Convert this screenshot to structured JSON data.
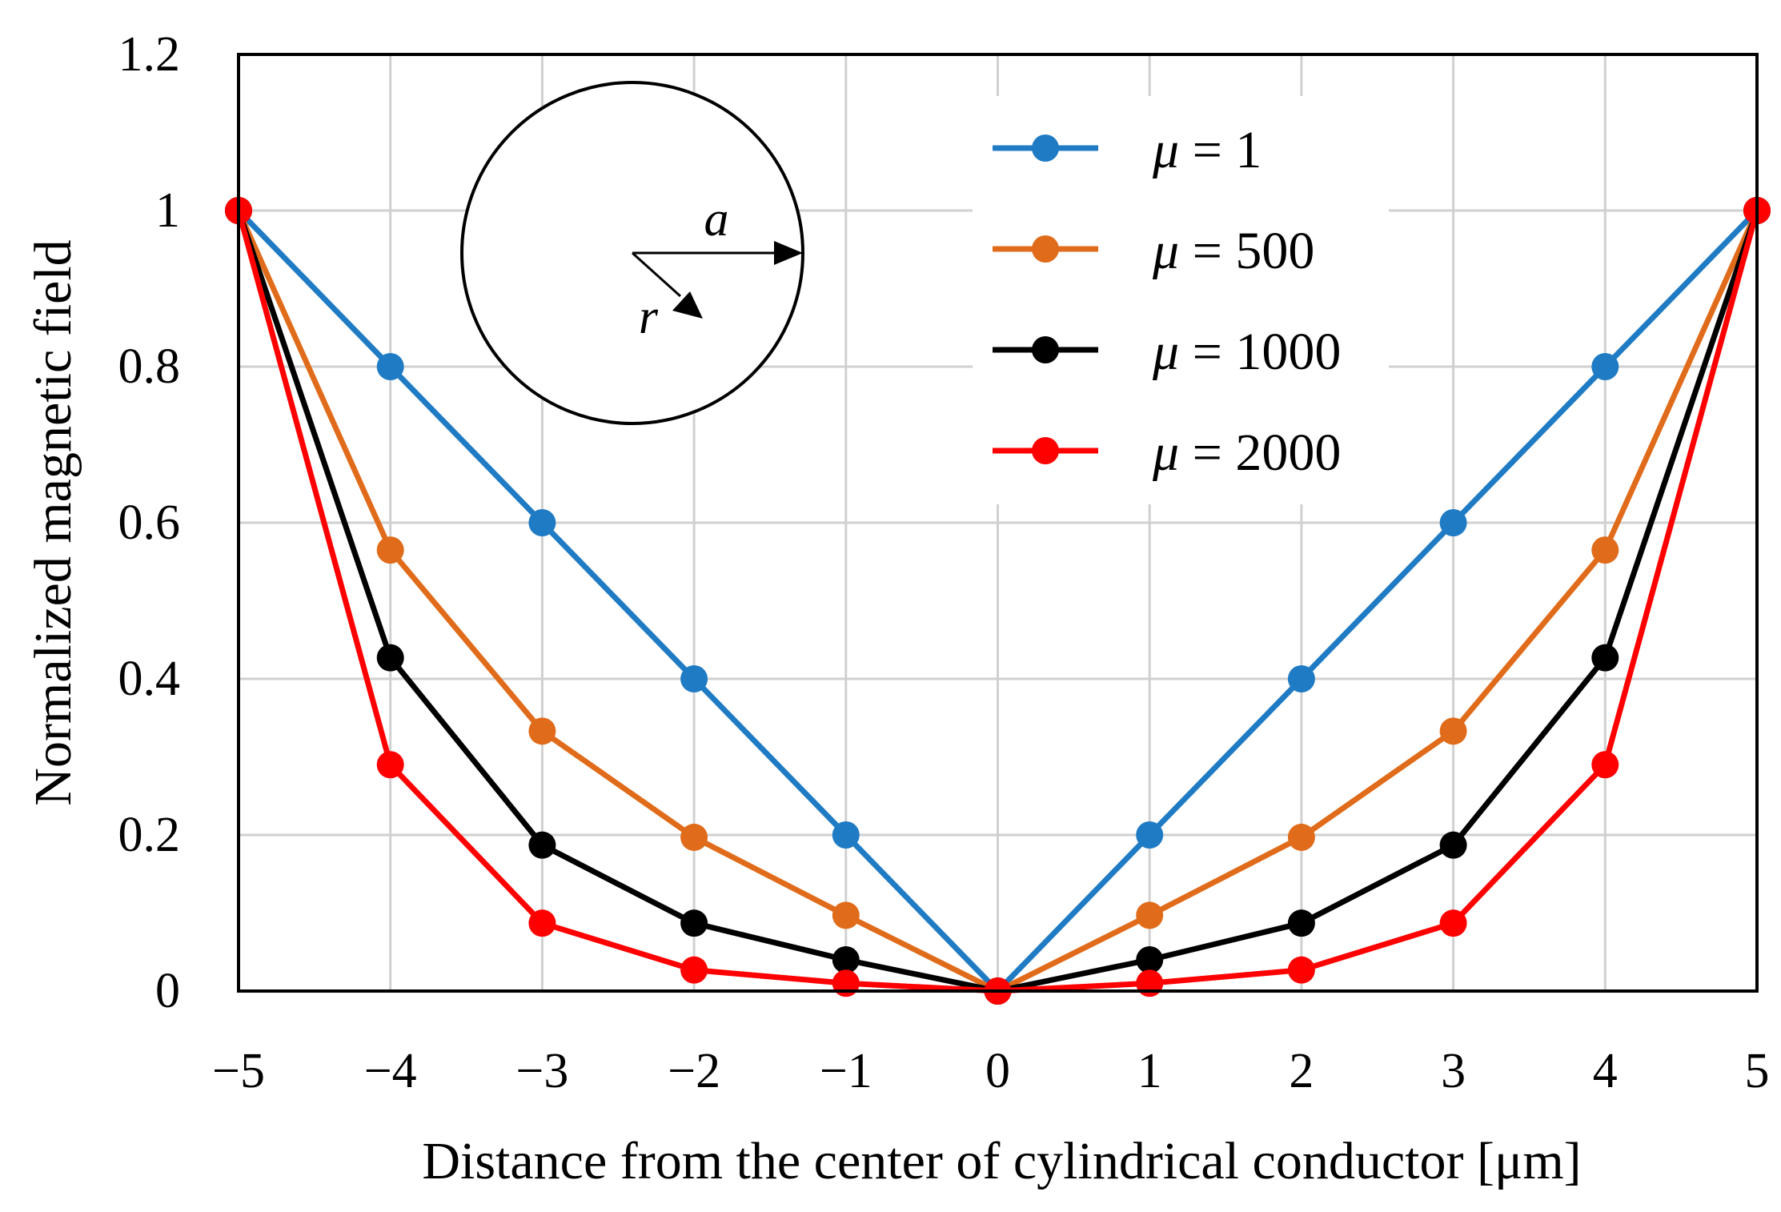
{
  "chart_data": {
    "type": "line",
    "title": "",
    "xlabel": "Distance from the center of cylindrical conductor [μm]",
    "ylabel": "Normalized magnetic field",
    "xlim": [
      -5,
      5
    ],
    "ylim": [
      0,
      1.2
    ],
    "grid": true,
    "legend_position": "top-right",
    "x": [
      -5,
      -4,
      -3,
      -2,
      -1,
      0,
      1,
      2,
      3,
      4,
      5
    ],
    "x_tick_labels": [
      "−5",
      "−4",
      "−3",
      "−2",
      "−1",
      "0",
      "1",
      "2",
      "3",
      "4",
      "5"
    ],
    "y_ticks": [
      0,
      0.2,
      0.4,
      0.6,
      0.8,
      1,
      1.2
    ],
    "y_tick_labels": [
      "0",
      "0.2",
      "0.4",
      "0.6",
      "0.8",
      "1",
      "1.2"
    ],
    "series": [
      {
        "symbol": "μ",
        "label": " = 1",
        "color": "#1f7bc4",
        "values": [
          1,
          0.8,
          0.6,
          0.4,
          0.2,
          0,
          0.2,
          0.4,
          0.6,
          0.8,
          1
        ]
      },
      {
        "symbol": "μ",
        "label": " = 500",
        "color": "#e06c1b",
        "values": [
          1,
          0.565,
          0.333,
          0.197,
          0.097,
          0,
          0.097,
          0.197,
          0.333,
          0.565,
          1
        ]
      },
      {
        "symbol": "μ",
        "label": " = 1000",
        "color": "#000000",
        "values": [
          1,
          0.427,
          0.187,
          0.087,
          0.04,
          0,
          0.04,
          0.087,
          0.187,
          0.427,
          1
        ]
      },
      {
        "symbol": "μ",
        "label": " = 2000",
        "color": "#ff0000",
        "values": [
          1,
          0.29,
          0.087,
          0.027,
          0.01,
          0,
          0.01,
          0.027,
          0.087,
          0.29,
          1
        ]
      }
    ],
    "inset": {
      "radius_label": "a",
      "position_label": "r"
    }
  }
}
